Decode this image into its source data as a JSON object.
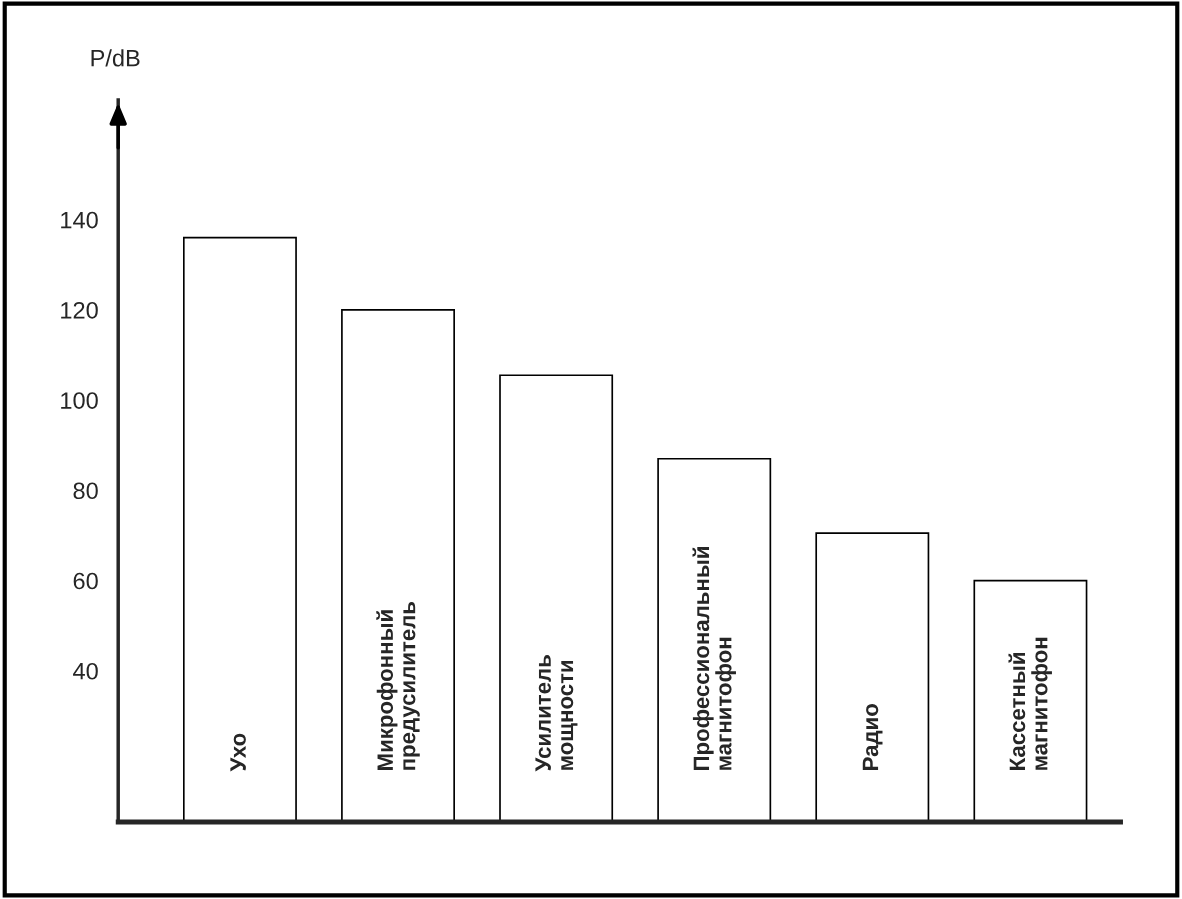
{
  "chart_data": {
    "type": "bar",
    "ylabel": "P/dB",
    "categories": [
      "Ухо",
      "Микрофонный\nпредусилитель",
      "Усилитель\nмощности",
      "Профессиональный\nмагнитофон",
      "Радио",
      "Кассетный\nмагнитофон"
    ],
    "values": [
      136,
      120,
      105.5,
      87,
      70.5,
      60
    ],
    "color": "#ffffff",
    "ylim": [
      6.5,
      166.5
    ],
    "yticks": [
      40,
      60,
      80,
      100,
      120,
      140
    ],
    "tick_labels": "y",
    "grid": false
  }
}
